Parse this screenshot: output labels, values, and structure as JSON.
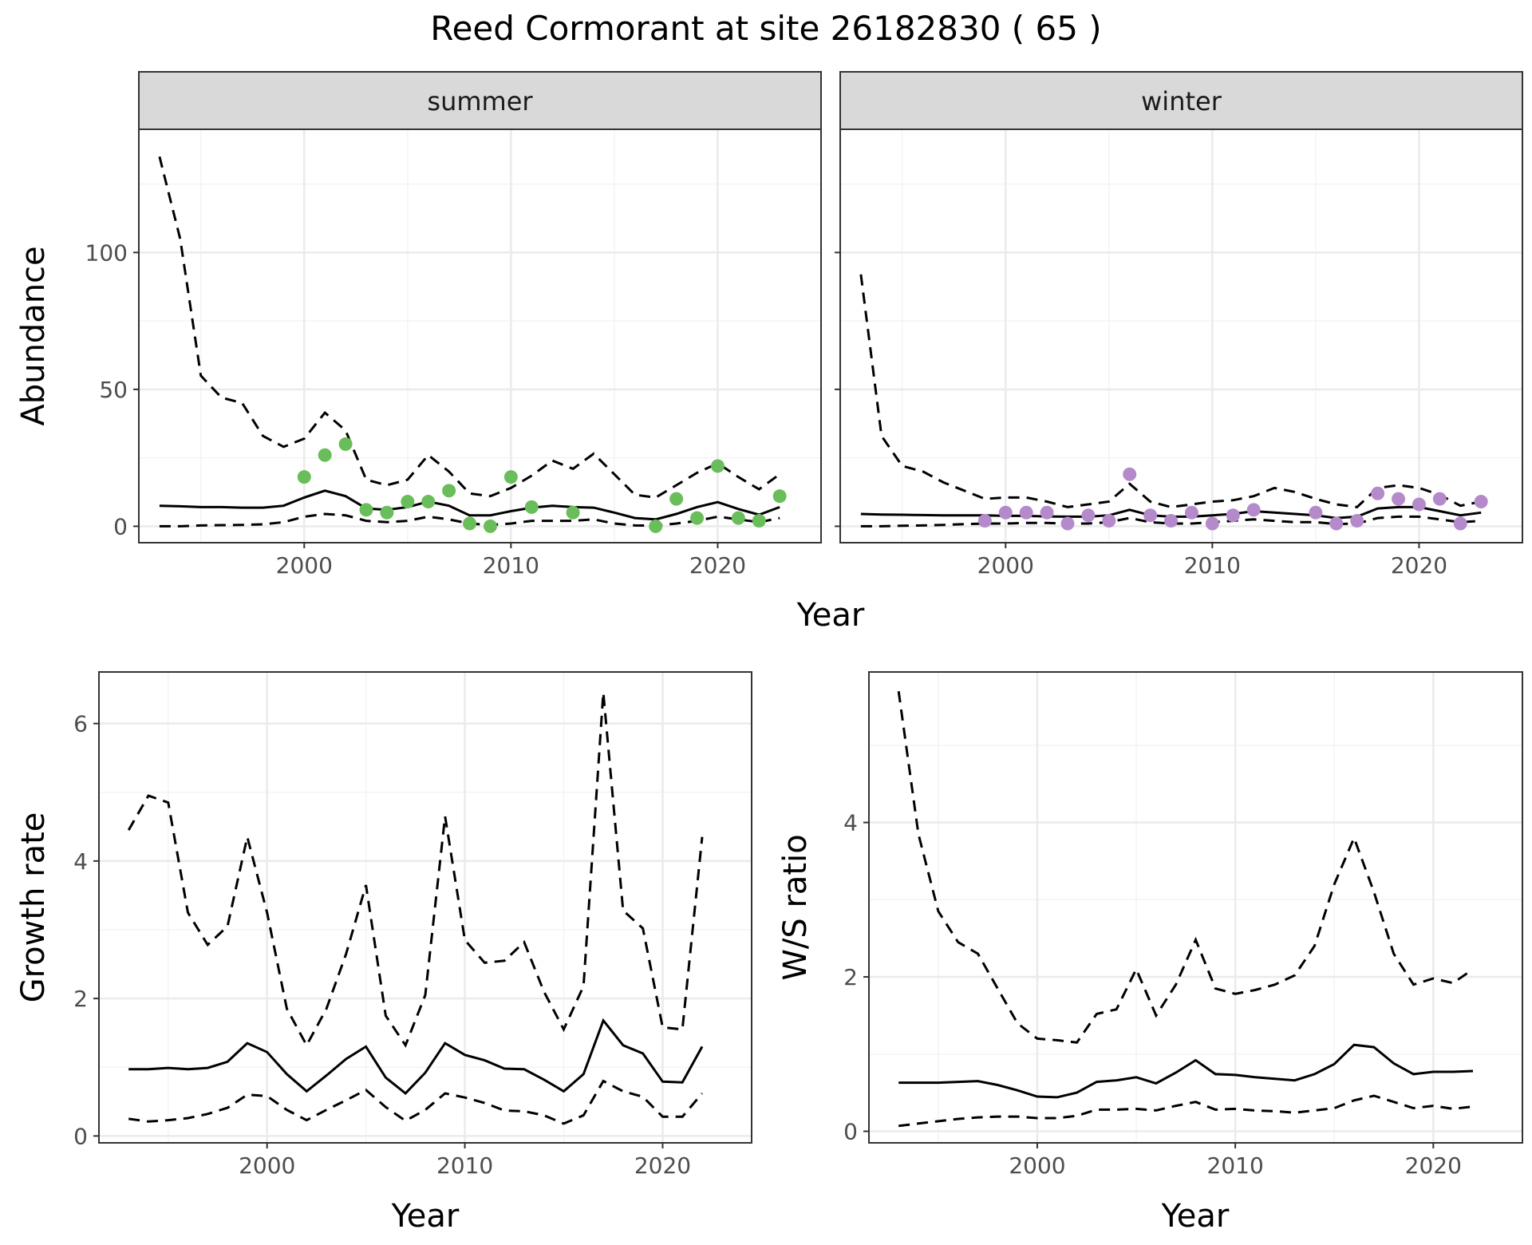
{
  "title": "Reed Cormorant at site 26182830 ( 65 )",
  "colors": {
    "summer_points": "#6ABD5B",
    "winter_points": "#B48ACB",
    "lines": "#000000",
    "strip": "#D9D9D9"
  },
  "chart_data": [
    {
      "type": "line",
      "panel": "summer",
      "strip_label": "summer",
      "xlabel": "Year",
      "ylabel": "Abundance",
      "xlim": [
        1992,
        2025
      ],
      "ylim": [
        -6,
        145
      ],
      "xticks": [
        2000,
        2010,
        2020
      ],
      "yticks": [
        0,
        50,
        100
      ],
      "grid": true,
      "x": [
        1993,
        1994,
        1995,
        1996,
        1997,
        1998,
        1999,
        2000,
        2001,
        2002,
        2003,
        2004,
        2005,
        2006,
        2007,
        2008,
        2009,
        2010,
        2011,
        2012,
        2013,
        2014,
        2015,
        2016,
        2017,
        2018,
        2019,
        2020,
        2021,
        2022,
        2023
      ],
      "series": [
        {
          "style": "solid",
          "values": [
            7.5,
            7.3,
            7.0,
            7.0,
            6.8,
            6.8,
            7.5,
            10.5,
            13.0,
            11.0,
            6.5,
            6.0,
            7.0,
            9.0,
            7.5,
            4.0,
            4.0,
            5.5,
            6.8,
            7.5,
            7.0,
            6.8,
            5.0,
            3.0,
            2.5,
            4.5,
            7.0,
            8.8,
            6.3,
            4.2,
            7.0
          ]
        },
        {
          "style": "dashed",
          "values": [
            135,
            105,
            55,
            47,
            45,
            33,
            29,
            32,
            41.5,
            35,
            17,
            15,
            17,
            26,
            20,
            12,
            11,
            14,
            18.5,
            24,
            21,
            26.5,
            19,
            11.5,
            10.5,
            15,
            19.5,
            23,
            18,
            13.5,
            19
          ]
        },
        {
          "style": "dashed",
          "values": [
            0,
            0,
            0.3,
            0.4,
            0.5,
            0.7,
            1.5,
            3.5,
            4.5,
            4.0,
            2.0,
            1.5,
            2.0,
            3.5,
            2.5,
            1.0,
            0.5,
            1.0,
            2.0,
            2.0,
            2.0,
            2.5,
            1.0,
            0.3,
            0.2,
            1.0,
            2.0,
            3.5,
            2.5,
            1.5,
            3.0
          ]
        }
      ],
      "points": {
        "x": [
          2000,
          2001,
          2002,
          2003,
          2004,
          2005,
          2006,
          2007,
          2008,
          2009,
          2010,
          2011,
          2013,
          2017,
          2018,
          2019,
          2020,
          2021,
          2022,
          2023
        ],
        "y": [
          18,
          26,
          30,
          6,
          5,
          9,
          9,
          13,
          1,
          0,
          18,
          7,
          5,
          0,
          10,
          3,
          22,
          3,
          2,
          11
        ]
      }
    },
    {
      "type": "line",
      "panel": "winter",
      "strip_label": "winter",
      "xlabel": "Year",
      "ylabel": "Abundance",
      "xlim": [
        1992,
        2025
      ],
      "ylim": [
        -6,
        145
      ],
      "xticks": [
        2000,
        2010,
        2020
      ],
      "yticks": [
        0,
        50,
        100
      ],
      "grid": true,
      "x": [
        1993,
        1994,
        1995,
        1996,
        1997,
        1998,
        1999,
        2000,
        2001,
        2002,
        2003,
        2004,
        2005,
        2006,
        2007,
        2008,
        2009,
        2010,
        2011,
        2012,
        2013,
        2014,
        2015,
        2016,
        2017,
        2018,
        2019,
        2020,
        2021,
        2022,
        2023
      ],
      "series": [
        {
          "style": "solid",
          "values": [
            4.5,
            4.3,
            4.2,
            4.1,
            4.0,
            4.0,
            4.0,
            3.8,
            3.8,
            3.6,
            3.5,
            3.5,
            4.0,
            6.0,
            4.0,
            3.5,
            3.5,
            4.0,
            4.5,
            5.5,
            5.0,
            4.5,
            4.0,
            3.0,
            3.5,
            6.5,
            7.0,
            7.0,
            5.5,
            4.0,
            5.0
          ]
        },
        {
          "style": "dashed",
          "values": [
            92,
            33,
            22,
            20,
            16,
            13,
            10,
            10.5,
            10.5,
            9,
            7,
            8,
            9,
            15.5,
            9,
            7,
            8,
            9,
            9.5,
            11,
            14,
            12.5,
            10,
            8,
            7,
            14,
            15,
            14,
            11.5,
            7.5,
            9
          ]
        },
        {
          "style": "dashed",
          "values": [
            0,
            0,
            0.2,
            0.3,
            0.5,
            0.8,
            1.0,
            1.0,
            1.2,
            1.2,
            1.0,
            1.0,
            1.5,
            3.0,
            1.5,
            1.0,
            1.0,
            1.5,
            2.0,
            2.5,
            2.0,
            1.5,
            1.5,
            0.8,
            1.0,
            3.0,
            3.5,
            3.5,
            2.5,
            1.5,
            2.0
          ]
        }
      ],
      "points": {
        "x": [
          1999,
          2000,
          2001,
          2002,
          2003,
          2004,
          2005,
          2006,
          2007,
          2008,
          2009,
          2010,
          2011,
          2012,
          2015,
          2016,
          2017,
          2018,
          2019,
          2020,
          2021,
          2022,
          2023
        ],
        "y": [
          2,
          5,
          5,
          5,
          1,
          4,
          2,
          19,
          4,
          2,
          5,
          1,
          4,
          6,
          5,
          1,
          2,
          12,
          10,
          8,
          10,
          1,
          9
        ]
      }
    },
    {
      "type": "line",
      "panel": "growth",
      "xlabel": "Year",
      "ylabel": "Growth rate",
      "xlim": [
        1991.5,
        2024.5
      ],
      "ylim": [
        -0.1,
        6.75
      ],
      "xticks": [
        2000,
        2010,
        2020
      ],
      "yticks": [
        0,
        2,
        4,
        6
      ],
      "grid": true,
      "x": [
        1993,
        1994,
        1995,
        1996,
        1997,
        1998,
        1999,
        2000,
        2001,
        2002,
        2003,
        2004,
        2005,
        2006,
        2007,
        2008,
        2009,
        2010,
        2011,
        2012,
        2013,
        2014,
        2015,
        2016,
        2017,
        2018,
        2019,
        2020,
        2021,
        2022
      ],
      "series": [
        {
          "style": "solid",
          "values": [
            0.97,
            0.97,
            0.99,
            0.97,
            0.99,
            1.08,
            1.35,
            1.22,
            0.9,
            0.65,
            0.88,
            1.12,
            1.3,
            0.85,
            0.62,
            0.92,
            1.35,
            1.18,
            1.1,
            0.98,
            0.97,
            0.82,
            0.65,
            0.9,
            1.68,
            1.32,
            1.2,
            0.79,
            0.78,
            1.3
          ]
        },
        {
          "style": "dashed",
          "values": [
            4.45,
            4.95,
            4.85,
            3.25,
            2.78,
            3.05,
            4.35,
            3.25,
            1.85,
            1.32,
            1.85,
            2.65,
            3.65,
            1.75,
            1.32,
            2.05,
            4.65,
            2.85,
            2.52,
            2.55,
            2.82,
            2.1,
            1.55,
            2.18,
            6.45,
            3.28,
            3.02,
            1.58,
            1.55,
            4.35
          ]
        },
        {
          "style": "dashed",
          "values": [
            0.25,
            0.21,
            0.23,
            0.26,
            0.32,
            0.41,
            0.6,
            0.58,
            0.38,
            0.23,
            0.38,
            0.52,
            0.67,
            0.42,
            0.22,
            0.38,
            0.62,
            0.56,
            0.48,
            0.37,
            0.36,
            0.3,
            0.18,
            0.3,
            0.8,
            0.65,
            0.57,
            0.28,
            0.28,
            0.62
          ]
        }
      ]
    },
    {
      "type": "line",
      "panel": "ratio",
      "xlabel": "Year",
      "ylabel": "W/S ratio",
      "xlim": [
        1991.5,
        2024.5
      ],
      "ylim": [
        -0.15,
        5.95
      ],
      "xticks": [
        2000,
        2010,
        2020
      ],
      "yticks": [
        0,
        2,
        4
      ],
      "grid": true,
      "x": [
        1993,
        1994,
        1995,
        1996,
        1997,
        1998,
        1999,
        2000,
        2001,
        2002,
        2003,
        2004,
        2005,
        2006,
        2007,
        2008,
        2009,
        2010,
        2011,
        2012,
        2013,
        2014,
        2015,
        2016,
        2017,
        2018,
        2019,
        2020,
        2021,
        2022
      ],
      "series": [
        {
          "style": "solid",
          "values": [
            0.63,
            0.63,
            0.63,
            0.64,
            0.65,
            0.6,
            0.53,
            0.45,
            0.44,
            0.5,
            0.64,
            0.66,
            0.7,
            0.62,
            0.76,
            0.92,
            0.74,
            0.73,
            0.7,
            0.68,
            0.66,
            0.74,
            0.87,
            1.12,
            1.09,
            0.88,
            0.74,
            0.77,
            0.77,
            0.78
          ]
        },
        {
          "style": "dashed",
          "values": [
            5.7,
            3.85,
            2.85,
            2.45,
            2.3,
            1.85,
            1.4,
            1.2,
            1.18,
            1.15,
            1.52,
            1.58,
            2.1,
            1.5,
            1.9,
            2.48,
            1.85,
            1.78,
            1.83,
            1.9,
            2.02,
            2.4,
            3.2,
            3.8,
            3.1,
            2.3,
            1.9,
            1.98,
            1.92,
            2.1
          ]
        },
        {
          "style": "dashed",
          "values": [
            0.07,
            0.1,
            0.13,
            0.16,
            0.18,
            0.19,
            0.19,
            0.17,
            0.17,
            0.2,
            0.28,
            0.28,
            0.29,
            0.27,
            0.33,
            0.38,
            0.28,
            0.29,
            0.27,
            0.26,
            0.24,
            0.27,
            0.3,
            0.4,
            0.46,
            0.38,
            0.3,
            0.33,
            0.29,
            0.32
          ]
        }
      ]
    }
  ]
}
